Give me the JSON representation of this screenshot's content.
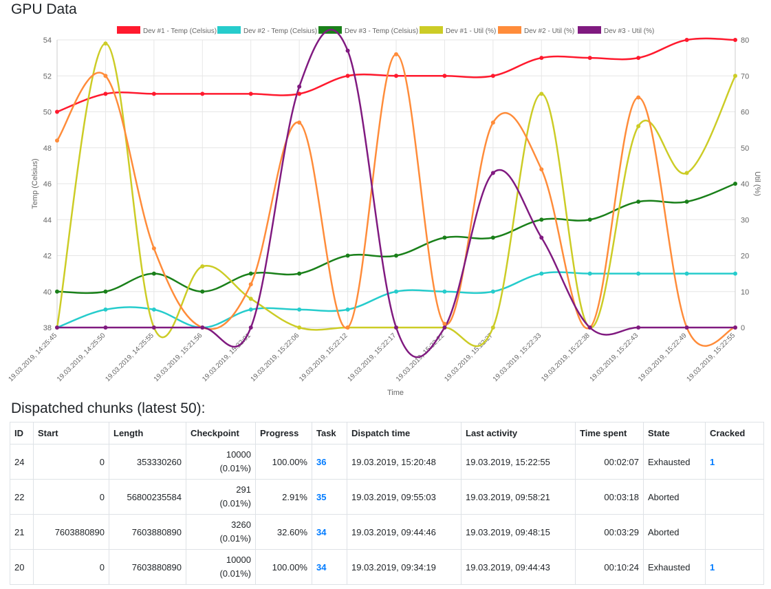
{
  "page_title": "GPU Data",
  "chunks_heading": "Dispatched chunks (latest 50):",
  "chart_data": {
    "type": "line",
    "title": "",
    "xlabel": "Time",
    "ylabel_left": "Temp (Celsius)",
    "ylabel_right": "Util (%)",
    "ylim_left": [
      38,
      54
    ],
    "ylim_right": [
      0,
      80
    ],
    "grid": true,
    "legend_position": "top",
    "yticks_left": [
      "38",
      "40",
      "42",
      "44",
      "46",
      "48",
      "50",
      "52",
      "54"
    ],
    "yticks_right": [
      "0",
      "10",
      "20",
      "30",
      "40",
      "50",
      "60",
      "70",
      "80"
    ],
    "categories": [
      "19.03.2019, 14:25:45",
      "19.03.2019, 14:25:50",
      "19.03.2019, 14:25:55",
      "19.03.2019, 15:21:56",
      "19.03.2019, 15:22:01",
      "19.03.2019, 15:22:06",
      "19.03.2019, 15:22:12",
      "19.03.2019, 15:22:17",
      "19.03.2019, 15:22:22",
      "19.03.2019, 15:22:27",
      "19.03.2019, 15:22:33",
      "19.03.2019, 15:22:38",
      "19.03.2019, 15:22:43",
      "19.03.2019, 15:22:49",
      "19.03.2019, 15:22:55"
    ],
    "series": [
      {
        "name": "Dev #1 - Temp (Celsius)",
        "axis": "left",
        "color": "#ff1a2e",
        "values": [
          50,
          51,
          51,
          51,
          51,
          51,
          52,
          52,
          52,
          52,
          53,
          53,
          53,
          54,
          54
        ]
      },
      {
        "name": "Dev #2 - Temp (Celsius)",
        "axis": "left",
        "color": "#26cccc",
        "values": [
          38,
          39,
          39,
          38,
          39,
          39,
          39,
          40,
          40,
          40,
          41,
          41,
          41,
          41,
          41
        ]
      },
      {
        "name": "Dev #3 - Temp (Celsius)",
        "axis": "left",
        "color": "#1a801a",
        "values": [
          40,
          40,
          41,
          40,
          41,
          41,
          42,
          42,
          43,
          43,
          44,
          44,
          45,
          45,
          46
        ]
      },
      {
        "name": "Dev #1 - Util (%)",
        "axis": "right",
        "color": "#cccc26",
        "values": [
          0,
          79,
          0,
          17,
          8,
          0,
          0,
          0,
          0,
          0,
          65,
          0,
          56,
          43,
          70
        ]
      },
      {
        "name": "Dev #2 - Util (%)",
        "axis": "right",
        "color": "#ff8c3a",
        "values": [
          52,
          70,
          22,
          0,
          12,
          57,
          0,
          76,
          1,
          57,
          44,
          0,
          64,
          0,
          0
        ]
      },
      {
        "name": "Dev #3 - Util (%)",
        "axis": "right",
        "color": "#801a80",
        "values": [
          0,
          0,
          0,
          0,
          0,
          67,
          77,
          0,
          0,
          43,
          25,
          0,
          0,
          0,
          0
        ]
      }
    ]
  },
  "table": {
    "headers": [
      "ID",
      "Start",
      "Length",
      "Checkpoint",
      "Progress",
      "Task",
      "Dispatch time",
      "Last activity",
      "Time spent",
      "State",
      "Cracked"
    ],
    "rows": [
      {
        "id": "24",
        "start": "0",
        "length": "353330260",
        "checkpoint": "10000",
        "checkpoint_pct": "(0.01%)",
        "progress": "100.00%",
        "task": "36",
        "dispatch": "19.03.2019, 15:20:48",
        "last": "19.03.2019, 15:22:55",
        "spent": "00:02:07",
        "state": "Exhausted",
        "cracked": "1"
      },
      {
        "id": "22",
        "start": "0",
        "length": "56800235584",
        "checkpoint": "291",
        "checkpoint_pct": "(0.01%)",
        "progress": "2.91%",
        "task": "35",
        "dispatch": "19.03.2019, 09:55:03",
        "last": "19.03.2019, 09:58:21",
        "spent": "00:03:18",
        "state": "Aborted",
        "cracked": ""
      },
      {
        "id": "21",
        "start": "7603880890",
        "length": "7603880890",
        "checkpoint": "3260",
        "checkpoint_pct": "(0.01%)",
        "progress": "32.60%",
        "task": "34",
        "dispatch": "19.03.2019, 09:44:46",
        "last": "19.03.2019, 09:48:15",
        "spent": "00:03:29",
        "state": "Aborted",
        "cracked": ""
      },
      {
        "id": "20",
        "start": "0",
        "length": "7603880890",
        "checkpoint": "10000",
        "checkpoint_pct": "(0.01%)",
        "progress": "100.00%",
        "task": "34",
        "dispatch": "19.03.2019, 09:34:19",
        "last": "19.03.2019, 09:44:43",
        "spent": "00:10:24",
        "state": "Exhausted",
        "cracked": "1"
      }
    ]
  }
}
